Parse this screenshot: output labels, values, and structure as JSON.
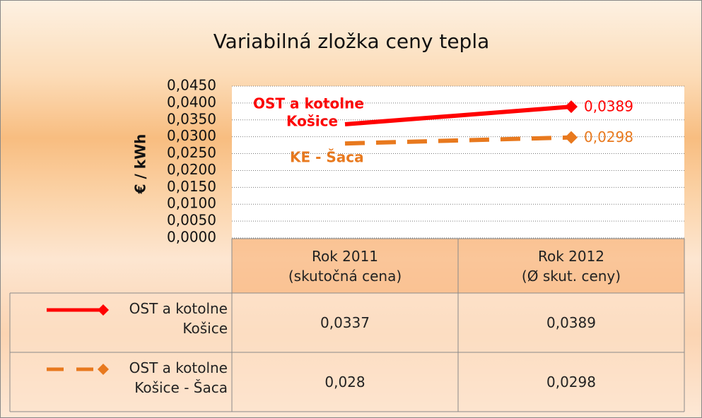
{
  "chart_data": {
    "type": "line",
    "title": "Variabilná zložka ceny tepla",
    "y_axis_label": "€ / kWh",
    "categories": [
      "Rok 2011\n(skutočná cena)",
      "Rok 2012\n(Ø skut. ceny)"
    ],
    "series": [
      {
        "name": "OST a kotolne Košice",
        "color": "#ff0000",
        "line_style": "solid",
        "values": [
          0.0337,
          0.0389
        ],
        "value_labels": [
          "0,0337",
          "0,0389"
        ]
      },
      {
        "name": "OST a kotolne Košice - Šaca",
        "color": "#e8791e",
        "line_style": "dashed",
        "values": [
          0.028,
          0.0298
        ],
        "value_labels": [
          "0,028",
          "0,0298"
        ]
      }
    ],
    "annotations": [
      "OST a kotolne",
      "Košice",
      "KE - Šaca"
    ],
    "ylim": [
      0,
      0.045
    ],
    "yticks": [
      {
        "value": 0,
        "label": "0,0000"
      },
      {
        "value": 0.005,
        "label": "0,0050"
      },
      {
        "value": 0.01,
        "label": "0,0100"
      },
      {
        "value": 0.015,
        "label": "0,0150"
      },
      {
        "value": 0.02,
        "label": "0,0200"
      },
      {
        "value": 0.025,
        "label": "0,0250"
      },
      {
        "value": 0.03,
        "label": "0,0300"
      },
      {
        "value": 0.035,
        "label": "0,0350"
      },
      {
        "value": 0.04,
        "label": "0,0400"
      },
      {
        "value": 0.045,
        "label": "0,0450"
      }
    ],
    "grid": true,
    "data_table": true
  }
}
